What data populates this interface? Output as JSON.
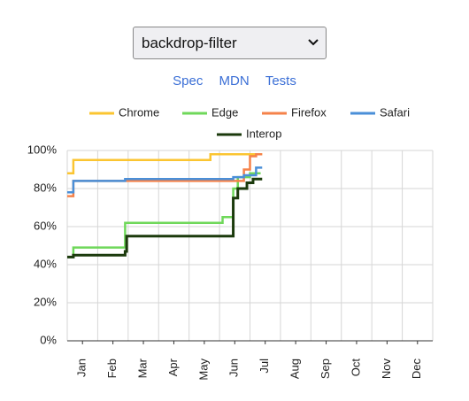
{
  "header": {
    "select": "backdrop-filter",
    "links": [
      "Spec",
      "MDN",
      "Tests"
    ]
  },
  "chart_data": {
    "type": "line",
    "step": true,
    "grid": true,
    "xlim": [
      0,
      12
    ],
    "xticks": [
      {
        "value": 0.5,
        "label": "Jan"
      },
      {
        "value": 1.5,
        "label": "Feb"
      },
      {
        "value": 2.5,
        "label": "Mar"
      },
      {
        "value": 3.5,
        "label": "Apr"
      },
      {
        "value": 4.5,
        "label": "May"
      },
      {
        "value": 5.5,
        "label": "Jun"
      },
      {
        "value": 6.5,
        "label": "Jul"
      },
      {
        "value": 7.5,
        "label": "Aug"
      },
      {
        "value": 8.5,
        "label": "Sep"
      },
      {
        "value": 9.5,
        "label": "Oct"
      },
      {
        "value": 10.5,
        "label": "Nov"
      },
      {
        "value": 11.5,
        "label": "Dec"
      }
    ],
    "ylim": [
      0,
      100
    ],
    "yticks": [
      {
        "value": 0,
        "label": "0%"
      },
      {
        "value": 20,
        "label": "20%"
      },
      {
        "value": 40,
        "label": "40%"
      },
      {
        "value": 60,
        "label": "60%"
      },
      {
        "value": 80,
        "label": "80%"
      },
      {
        "value": 100,
        "label": "100%"
      }
    ],
    "series": [
      {
        "name": "Chrome",
        "color": "#fbc531",
        "x": [
          0,
          0.2,
          4.7,
          6.4
        ],
        "values": [
          88,
          95,
          98,
          98
        ]
      },
      {
        "name": "Edge",
        "color": "#6fd85a",
        "x": [
          0,
          0.2,
          1.9,
          5.1,
          5.45,
          5.6,
          6.0,
          6.35
        ],
        "values": [
          44,
          49,
          62,
          65,
          80,
          86,
          88,
          88
        ]
      },
      {
        "name": "Firefox",
        "color": "#f5824a",
        "x": [
          0,
          0.2,
          5.45,
          5.8,
          6.0,
          6.2,
          6.4
        ],
        "values": [
          76,
          84,
          84,
          90,
          97,
          98,
          98
        ]
      },
      {
        "name": "Safari",
        "color": "#4a8fd8",
        "x": [
          0,
          0.2,
          1.9,
          5.45,
          5.8,
          6.2,
          6.4
        ],
        "values": [
          78,
          84,
          85,
          86,
          87,
          91,
          91
        ]
      },
      {
        "name": "Interop",
        "color": "#1b3a0c",
        "x": [
          0,
          0.2,
          1.9,
          1.95,
          5.45,
          5.6,
          5.9,
          6.1,
          6.4
        ],
        "values": [
          44,
          45,
          47,
          55,
          75,
          80,
          83,
          85,
          85
        ]
      }
    ]
  }
}
